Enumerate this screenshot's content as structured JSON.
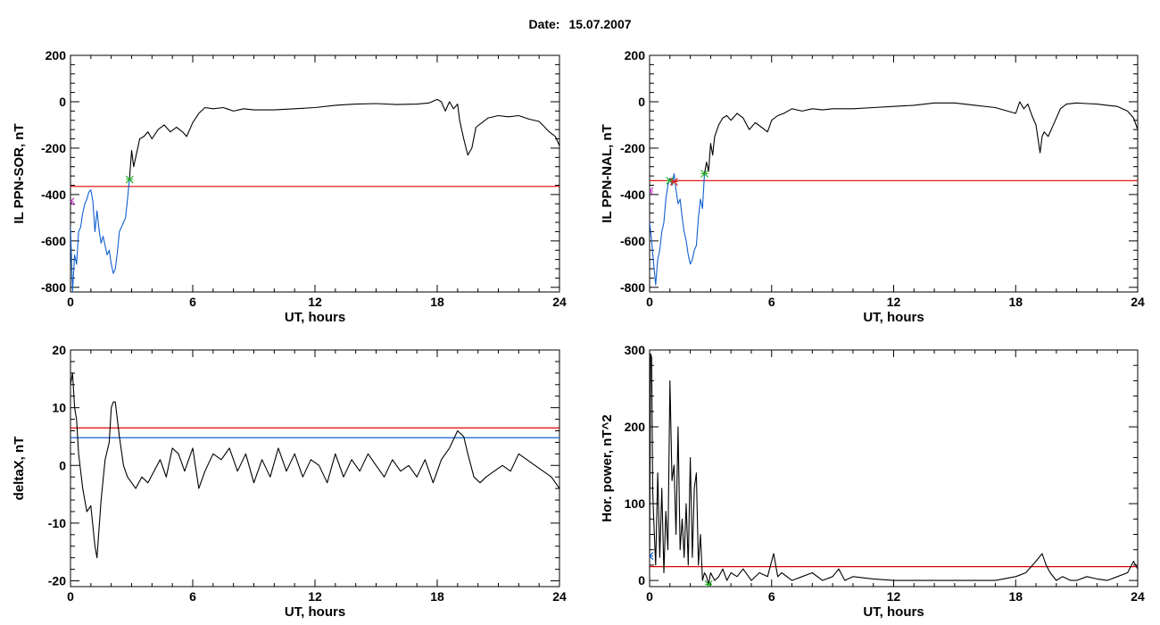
{
  "page": {
    "title_label": "Date:",
    "title_value": "15.07.2007"
  },
  "chart_data": [
    {
      "id": "sor",
      "type": "line",
      "ylabel": "IL PPN-SOR, nT",
      "xlabel": "UT, hours",
      "xlim": [
        0,
        24
      ],
      "ylim": [
        -820,
        200
      ],
      "xticks": [
        0,
        6,
        12,
        18,
        24
      ],
      "yticks": [
        200,
        0,
        -200,
        -400,
        -600,
        -800
      ],
      "threshold": {
        "value": -365,
        "color": "#dd0000"
      },
      "series": [
        {
          "color": "#000000",
          "x": [
            2.9,
            3.0,
            3.1,
            3.2,
            3.4,
            3.6,
            3.8,
            4.0,
            4.3,
            4.6,
            4.9,
            5.2,
            5.5,
            5.7,
            6.0,
            6.3,
            6.6,
            7.0,
            7.5,
            8.0,
            8.5,
            9.0,
            10.0,
            11.0,
            12.0,
            13.0,
            14.0,
            15.0,
            16.0,
            17.0,
            17.6,
            18.0,
            18.2,
            18.4,
            18.6,
            18.8,
            19.0,
            19.1,
            19.3,
            19.5,
            19.7,
            19.9,
            20.2,
            20.5,
            21.0,
            21.5,
            22.0,
            22.5,
            23.0,
            23.5,
            23.8,
            24.0
          ],
          "y": [
            -330,
            -210,
            -280,
            -240,
            -160,
            -150,
            -130,
            -160,
            -120,
            -100,
            -130,
            -110,
            -130,
            -150,
            -90,
            -50,
            -25,
            -30,
            -25,
            -40,
            -30,
            -35,
            -35,
            -30,
            -25,
            -15,
            -10,
            -8,
            -12,
            -10,
            -5,
            10,
            0,
            -40,
            0,
            -30,
            -10,
            -80,
            -160,
            -230,
            -200,
            -110,
            -90,
            -70,
            -60,
            -65,
            -60,
            -75,
            -85,
            -130,
            -150,
            -190
          ]
        },
        {
          "color": "#1060d0",
          "x": [
            0.0,
            0.1,
            0.2,
            0.3,
            0.4,
            0.5,
            0.6,
            0.7,
            0.8,
            0.9,
            1.0,
            1.1,
            1.2,
            1.3,
            1.4,
            1.5,
            1.6,
            1.7,
            1.8,
            1.9,
            2.0,
            2.1,
            2.2,
            2.3,
            2.4,
            2.5,
            2.6,
            2.7,
            2.8,
            2.9
          ],
          "y": [
            -540,
            -820,
            -660,
            -700,
            -560,
            -540,
            -480,
            -440,
            -420,
            -390,
            -380,
            -430,
            -560,
            -470,
            -550,
            -610,
            -580,
            -620,
            -660,
            -640,
            -700,
            -740,
            -720,
            -650,
            -560,
            -540,
            -520,
            -500,
            -420,
            -330
          ]
        }
      ],
      "markers": [
        {
          "x": 0.0,
          "y": -430,
          "color": "#c030c0"
        },
        {
          "x": 2.9,
          "y": -335,
          "color": "#20b020"
        }
      ]
    },
    {
      "id": "nal",
      "type": "line",
      "ylabel": "IL PPN-NAL, nT",
      "xlabel": "UT, hours",
      "xlim": [
        0,
        24
      ],
      "ylim": [
        -820,
        200
      ],
      "xticks": [
        0,
        6,
        12,
        18,
        24
      ],
      "yticks": [
        200,
        0,
        -200,
        -400,
        -600,
        -800
      ],
      "threshold": {
        "value": -340,
        "color": "#dd0000"
      },
      "series": [
        {
          "color": "#000000",
          "x": [
            2.7,
            2.8,
            2.9,
            3.0,
            3.1,
            3.2,
            3.4,
            3.6,
            3.8,
            4.0,
            4.3,
            4.6,
            4.9,
            5.2,
            5.5,
            5.8,
            6.0,
            6.3,
            6.6,
            7.0,
            7.5,
            8.0,
            8.5,
            9.0,
            10.0,
            11.0,
            12.0,
            13.0,
            14.0,
            15.0,
            16.0,
            17.0,
            17.6,
            18.0,
            18.2,
            18.4,
            18.6,
            18.8,
            19.0,
            19.1,
            19.2,
            19.3,
            19.4,
            19.6,
            19.9,
            20.2,
            20.5,
            21.0,
            21.5,
            22.0,
            22.5,
            23.0,
            23.5,
            23.8,
            24.0
          ],
          "y": [
            -310,
            -260,
            -300,
            -180,
            -230,
            -150,
            -100,
            -70,
            -60,
            -80,
            -50,
            -70,
            -120,
            -90,
            -110,
            -130,
            -80,
            -60,
            -50,
            -30,
            -40,
            -30,
            -35,
            -30,
            -30,
            -25,
            -20,
            -15,
            -5,
            -5,
            -15,
            -25,
            -40,
            -50,
            0,
            -30,
            -10,
            -60,
            -100,
            -160,
            -220,
            -150,
            -130,
            -150,
            -90,
            -30,
            -10,
            -5,
            -8,
            -10,
            -15,
            -20,
            -40,
            -70,
            -120
          ]
        },
        {
          "color": "#1060d0",
          "x": [
            0.0,
            0.1,
            0.2,
            0.3,
            0.4,
            0.5,
            0.6,
            0.7,
            0.8,
            0.9,
            1.0,
            1.1,
            1.2,
            1.3,
            1.4,
            1.5,
            1.6,
            1.7,
            1.8,
            1.9,
            2.0,
            2.1,
            2.2,
            2.3,
            2.4,
            2.5,
            2.6,
            2.7
          ],
          "y": [
            -520,
            -600,
            -700,
            -790,
            -680,
            -640,
            -560,
            -520,
            -420,
            -360,
            -330,
            -360,
            -310,
            -380,
            -440,
            -420,
            -500,
            -560,
            -600,
            -660,
            -700,
            -680,
            -640,
            -620,
            -500,
            -420,
            -460,
            -310
          ]
        }
      ],
      "markers": [
        {
          "x": 0.0,
          "y": -385,
          "color": "#c030c0"
        },
        {
          "x": 1.0,
          "y": -340,
          "color": "#20b020"
        },
        {
          "x": 1.2,
          "y": -345,
          "color": "#dd2020"
        },
        {
          "x": 2.7,
          "y": -310,
          "color": "#20b020"
        }
      ]
    },
    {
      "id": "deltax",
      "type": "line",
      "ylabel": "deltaX, nT",
      "xlabel": "UT, hours",
      "xlim": [
        0,
        24
      ],
      "ylim": [
        -21,
        20
      ],
      "xticks": [
        0,
        6,
        12,
        18,
        24
      ],
      "yticks": [
        20,
        10,
        0,
        -10,
        -20
      ],
      "threshold": {
        "value": 6.5,
        "color": "#dd0000"
      },
      "threshold2": {
        "value": 4.8,
        "color": "#1060d0"
      },
      "series": [
        {
          "color": "#000000",
          "x": [
            0.0,
            0.1,
            0.2,
            0.3,
            0.4,
            0.6,
            0.8,
            1.0,
            1.2,
            1.3,
            1.5,
            1.7,
            1.9,
            2.0,
            2.1,
            2.2,
            2.4,
            2.6,
            2.8,
            3.0,
            3.2,
            3.5,
            3.8,
            4.1,
            4.4,
            4.7,
            5.0,
            5.3,
            5.6,
            6.0,
            6.3,
            6.6,
            7.0,
            7.4,
            7.8,
            8.2,
            8.6,
            9.0,
            9.4,
            9.8,
            10.2,
            10.6,
            11.0,
            11.4,
            11.8,
            12.2,
            12.6,
            13.0,
            13.4,
            13.8,
            14.2,
            14.6,
            15.0,
            15.4,
            15.8,
            16.2,
            16.6,
            17.0,
            17.4,
            17.8,
            18.2,
            18.6,
            19.0,
            19.3,
            19.5,
            19.8,
            20.1,
            20.4,
            20.8,
            21.2,
            21.6,
            22.0,
            22.4,
            22.8,
            23.2,
            23.6,
            24.0
          ],
          "y": [
            14,
            16,
            10,
            8,
            2,
            -4,
            -8,
            -7,
            -14,
            -16,
            -6,
            1,
            4,
            10,
            11,
            11,
            5,
            0,
            -2,
            -3,
            -4,
            -2,
            -3,
            -1,
            1,
            -2,
            3,
            2,
            -1,
            3,
            -4,
            -1,
            2,
            1,
            3,
            -1,
            2,
            -3,
            1,
            -2,
            3,
            -1,
            2,
            -2,
            1,
            0,
            -3,
            2,
            -2,
            1,
            -1,
            2,
            0,
            -2,
            1,
            -1,
            0,
            -2,
            1,
            -3,
            1,
            3,
            6,
            5,
            2,
            -2,
            -3,
            -2,
            -1,
            0,
            -1,
            2,
            1,
            0,
            -1,
            -2,
            -4
          ]
        }
      ],
      "markers": []
    },
    {
      "id": "power",
      "type": "line",
      "ylabel": "Hor. power, nT^2",
      "xlabel": "UT, hours",
      "xlim": [
        0,
        24
      ],
      "ylim": [
        -8,
        300
      ],
      "xticks": [
        0,
        6,
        12,
        18,
        24
      ],
      "yticks": [
        300,
        200,
        100,
        0
      ],
      "threshold": {
        "value": 18,
        "color": "#dd0000"
      },
      "series": [
        {
          "color": "#000000",
          "x": [
            0.0,
            0.05,
            0.1,
            0.15,
            0.2,
            0.3,
            0.4,
            0.5,
            0.6,
            0.7,
            0.8,
            0.9,
            1.0,
            1.1,
            1.2,
            1.3,
            1.4,
            1.5,
            1.6,
            1.7,
            1.8,
            1.9,
            2.0,
            2.1,
            2.2,
            2.3,
            2.4,
            2.5,
            2.6,
            2.7,
            2.8,
            2.9,
            3.0,
            3.2,
            3.4,
            3.6,
            3.8,
            4.0,
            4.3,
            4.6,
            5.0,
            5.4,
            5.8,
            6.1,
            6.3,
            6.5,
            7.0,
            7.5,
            8.0,
            8.5,
            9.0,
            9.3,
            9.6,
            10.0,
            11.0,
            12.0,
            13.0,
            14.0,
            15.0,
            16.0,
            17.0,
            18.0,
            18.5,
            19.0,
            19.3,
            19.5,
            19.7,
            20.0,
            20.3,
            20.7,
            21.0,
            21.5,
            22.0,
            22.5,
            23.0,
            23.5,
            23.8,
            24.0
          ],
          "y": [
            30,
            295,
            290,
            120,
            80,
            20,
            140,
            30,
            120,
            10,
            90,
            40,
            260,
            130,
            150,
            60,
            200,
            40,
            80,
            30,
            100,
            20,
            160,
            30,
            120,
            140,
            20,
            60,
            0,
            10,
            5,
            -5,
            10,
            0,
            5,
            15,
            0,
            10,
            5,
            15,
            0,
            10,
            5,
            35,
            5,
            10,
            0,
            5,
            10,
            0,
            5,
            15,
            0,
            5,
            2,
            0,
            0,
            0,
            0,
            0,
            0,
            5,
            10,
            25,
            35,
            20,
            10,
            0,
            5,
            0,
            0,
            5,
            2,
            0,
            5,
            10,
            25,
            15
          ]
        }
      ],
      "markers": [
        {
          "x": 0.0,
          "y": 32,
          "color": "#1060d0"
        },
        {
          "x": 2.9,
          "y": -5,
          "color": "#20b020"
        }
      ]
    }
  ]
}
